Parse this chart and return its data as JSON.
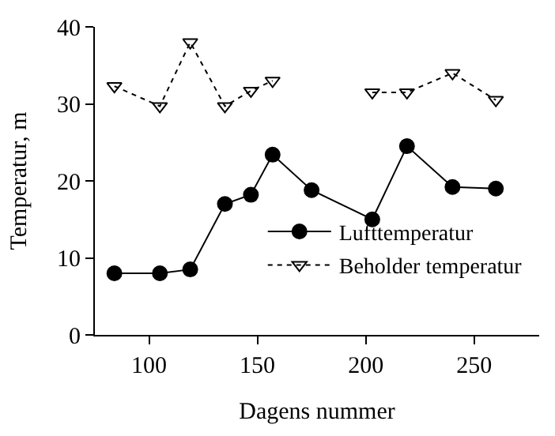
{
  "chart_data": {
    "type": "line",
    "xlabel": "Dagens nummer",
    "ylabel": "Temperatur, m",
    "x": [
      84,
      105,
      119,
      135,
      147,
      157,
      175,
      203,
      219,
      240,
      260
    ],
    "series": [
      {
        "name": "Lufttemperatur",
        "color": "#000000",
        "marker": "circle",
        "line_style": "solid",
        "values": [
          8,
          8,
          8.5,
          17,
          18.2,
          23.4,
          18.8,
          15,
          24.5,
          19.2,
          19
        ]
      },
      {
        "name": "Beholder temperatur",
        "color": "#000000",
        "marker": "triangle",
        "line_style": "dotted",
        "values": [
          32.3,
          29.7,
          38,
          29.7,
          31.7,
          33,
          null,
          31.5,
          31.5,
          34,
          30.5
        ]
      }
    ],
    "xlim": [
      75,
      280
    ],
    "xticks": [
      100,
      150,
      200,
      250
    ],
    "ylim": [
      0,
      40
    ],
    "yticks": [
      0,
      10,
      20,
      30,
      40
    ],
    "legend": "bottom right"
  }
}
